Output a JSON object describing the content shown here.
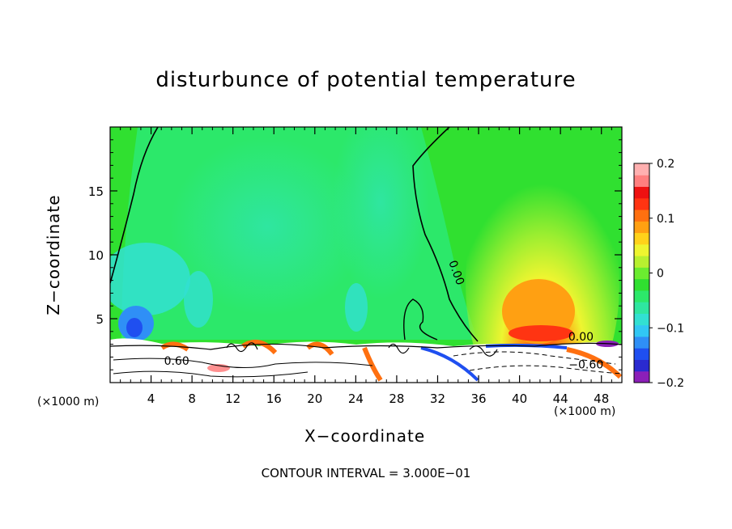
{
  "chart_data": {
    "type": "heatmap",
    "title": "disturbunce of potential temperature",
    "xlabel": "X−coordinate",
    "ylabel": "Z−coordinate",
    "x_unit_label": "(×1000 m)",
    "z_unit_label": "(×1000 m)",
    "xlim": [
      0,
      50
    ],
    "ylim": [
      0,
      20
    ],
    "x_ticks": [
      4,
      8,
      12,
      16,
      20,
      24,
      28,
      32,
      36,
      40,
      44,
      48
    ],
    "y_ticks": [
      5,
      10,
      15
    ],
    "colorbar": {
      "range": [
        -0.2,
        0.2
      ],
      "ticks": [
        {
          "value": 0.2,
          "label": "0.2"
        },
        {
          "value": 0.1,
          "label": "0.1"
        },
        {
          "value": 0.0,
          "label": "0"
        },
        {
          "value": -0.1,
          "label": "−0.1"
        },
        {
          "value": -0.2,
          "label": "−0.2"
        }
      ],
      "colors": [
        "#8b1fb8",
        "#2a2ad0",
        "#1f4ff0",
        "#2f8ff6",
        "#31c7f4",
        "#32e0d2",
        "#2fe6a0",
        "#2ce86a",
        "#30e030",
        "#6bec30",
        "#b8f030",
        "#eef530",
        "#ffd21a",
        "#ffa012",
        "#ff7010",
        "#ff3412",
        "#ee1111",
        "#ff7f7f",
        "#ffb0b0"
      ]
    },
    "contour_labels": [
      {
        "text": "0.00",
        "x": 33.5,
        "z": 8.5,
        "rotate": 70
      },
      {
        "text": "0.00",
        "x": 46.0,
        "z": 3.3,
        "rotate": 0
      },
      {
        "text": "0.60",
        "x": 6.5,
        "z": 1.4,
        "rotate": 0
      },
      {
        "text": "−0.60",
        "x": 46.5,
        "z": 1.1,
        "rotate": 0
      }
    ],
    "contour_interval_text": "CONTOUR INTERVAL = 3.000E−01"
  }
}
